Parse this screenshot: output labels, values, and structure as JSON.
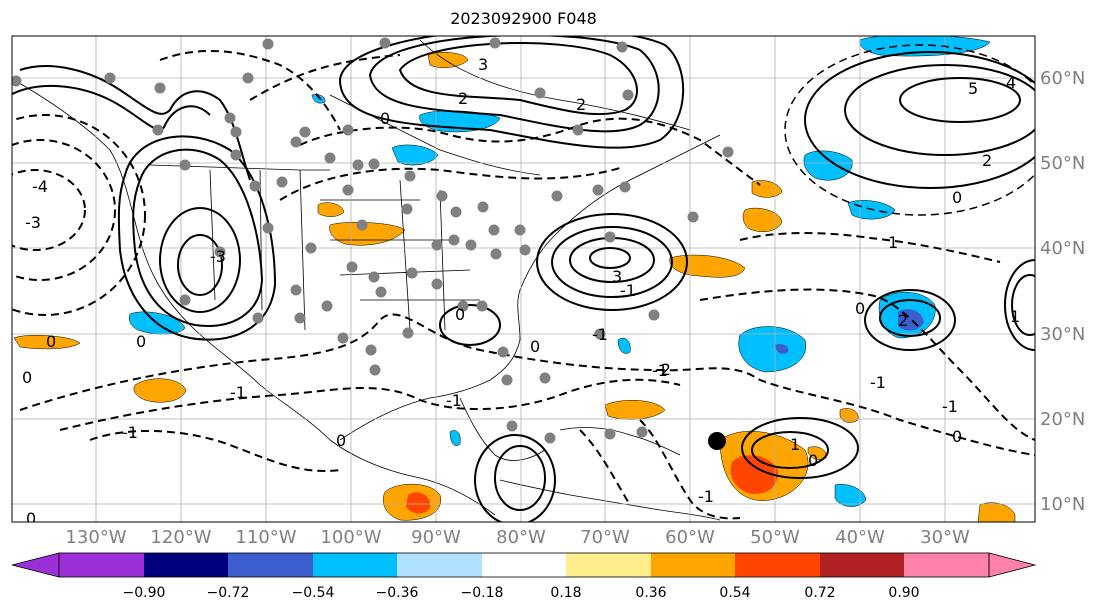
{
  "title": "2023092900 F048",
  "map": {
    "lon_labels": [
      "130°W",
      "120°W",
      "110°W",
      "100°W",
      "90°W",
      "80°W",
      "70°W",
      "60°W",
      "50°W",
      "40°W",
      "30°W"
    ],
    "lat_labels": [
      "60°N",
      "50°N",
      "40°N",
      "30°N",
      "20°N",
      "10°N"
    ],
    "contour_labels": [
      "0",
      "1",
      "2",
      "3",
      "-1",
      "-2",
      "-3",
      "-4",
      "4",
      "5"
    ],
    "colors": {
      "land_outline": "#000000",
      "grid": "#b0b0b0",
      "label_gray": "#808080"
    }
  },
  "colorbar": {
    "tick_labels": [
      "−0.90",
      "−0.72",
      "−0.54",
      "−0.36",
      "−0.18",
      "0.18",
      "0.36",
      "0.54",
      "0.72",
      "0.90"
    ],
    "colors": [
      "#9b30d9",
      "#00007f",
      "#3a5fcd",
      "#00bfff",
      "#b0e2ff",
      "#ffffff",
      "#ffec8b",
      "#ffa500",
      "#ff4500",
      "#b22222",
      "#ff82ab"
    ]
  }
}
